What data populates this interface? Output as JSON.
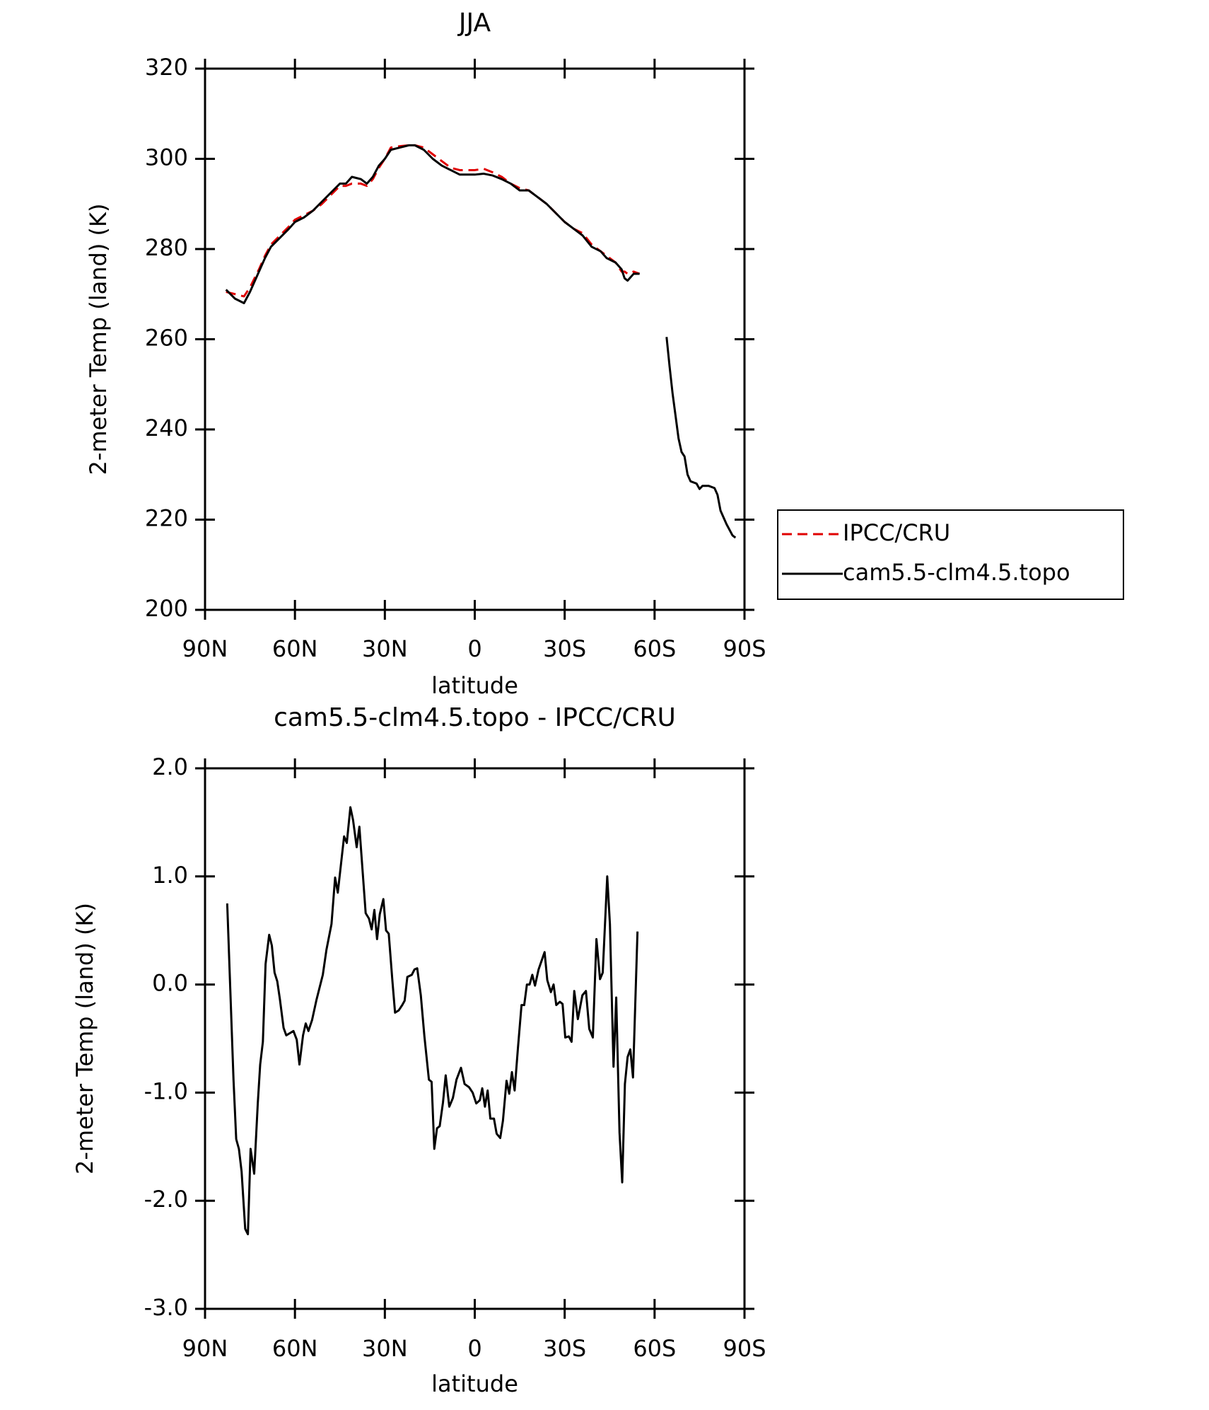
{
  "chart_data": [
    {
      "type": "line",
      "title": "JJA",
      "xlabel": "latitude",
      "ylabel": "2-meter Temp (land) (K)",
      "x": [
        83,
        80,
        77,
        75,
        72,
        70,
        68,
        65,
        62,
        60,
        57,
        54,
        51,
        48,
        45,
        43,
        41,
        38,
        36,
        34,
        32,
        30,
        28,
        25,
        22,
        20,
        17,
        14,
        11,
        8,
        5,
        0,
        -3,
        -6,
        -9,
        -12,
        -15,
        -18,
        -21,
        -24,
        -27,
        -30,
        -33,
        -36,
        -39,
        -42,
        -44,
        -47,
        -49,
        -50,
        -51,
        -53,
        -55,
        -60,
        -64,
        -65,
        -66,
        -67,
        -68,
        -69,
        -70,
        -71,
        -72,
        -74,
        -75,
        -76,
        -78,
        -80,
        -81,
        -82,
        -84,
        -86,
        -87
      ],
      "xlim": [
        90,
        -90
      ],
      "xticks": [
        {
          "value": 90,
          "label": "90N"
        },
        {
          "value": 60,
          "label": "60N"
        },
        {
          "value": 30,
          "label": "30N"
        },
        0,
        {
          "value": -30,
          "label": "30S"
        },
        {
          "value": -60,
          "label": "60S"
        },
        {
          "value": -90,
          "label": "90S"
        }
      ],
      "ylim": [
        200,
        320
      ],
      "yticks": [
        200,
        220,
        240,
        260,
        280,
        300,
        320
      ],
      "legend": "right",
      "series": [
        {
          "name": "IPCC/CRU",
          "color": "#e00000",
          "linestyle": "dashed",
          "values": [
            270.5,
            270,
            269.5,
            271.5,
            275.5,
            278.5,
            281,
            283,
            285,
            286.5,
            287.5,
            288.5,
            290,
            292,
            294,
            294,
            294.5,
            294.5,
            294,
            295.5,
            298,
            300,
            302.5,
            302.8,
            303,
            303,
            302.5,
            301,
            299.5,
            298,
            297.5,
            297.5,
            297.8,
            297,
            296,
            294.5,
            293.5,
            293,
            291.5,
            290,
            288,
            286,
            284.5,
            283.5,
            281,
            279.5,
            278.5,
            277,
            275,
            275,
            274.5,
            275,
            274.5,
            null,
            null,
            null,
            null,
            null,
            null,
            null,
            null,
            null,
            null,
            null,
            null,
            null,
            null,
            null,
            null,
            null,
            null,
            null,
            null
          ]
        },
        {
          "name": "cam5.5-clm4.5.topo",
          "color": "#000000",
          "linestyle": "solid",
          "values": [
            271,
            269,
            268,
            270.5,
            275,
            278,
            280.5,
            282.5,
            284.5,
            286,
            287,
            288.5,
            290.5,
            292.5,
            294.5,
            294.5,
            296,
            295.5,
            294.5,
            296,
            298.5,
            300,
            302,
            302.5,
            303,
            303,
            302,
            300,
            298.5,
            297.5,
            296.5,
            296.5,
            296.7,
            296.3,
            295.5,
            294.5,
            293,
            293,
            291.5,
            290,
            288,
            286,
            284.5,
            283,
            280.5,
            279.5,
            278,
            277,
            275.5,
            273.5,
            273,
            274.5,
            274.5,
            null,
            260.5,
            254,
            248,
            243,
            238,
            235,
            234,
            230,
            228.5,
            228,
            226.8,
            227.5,
            227.5,
            227,
            225.5,
            222,
            219,
            216.5,
            216
          ]
        }
      ]
    },
    {
      "type": "line",
      "title": "cam5.5-clm4.5.topo - IPCC/CRU",
      "xlabel": "latitude",
      "ylabel": "2-meter Temp (land) (K)",
      "x": [
        82.6,
        80.5,
        79.6,
        78.7,
        77.8,
        76.6,
        75.7,
        74.8,
        73.6,
        72.4,
        71.6,
        70.7,
        69.8,
        68.6,
        67.7,
        66.8,
        65.9,
        65,
        63.8,
        62.9,
        61.7,
        60.5,
        59.4,
        58.5,
        57.3,
        56.4,
        55.5,
        54.3,
        52.8,
        50.7,
        49.5,
        47.8,
        46.6,
        45.7,
        43.6,
        42.7,
        41.5,
        40.6,
        39.4,
        38.5,
        36.4,
        35.3,
        34.4,
        33.5,
        32.6,
        31.7,
        30.5,
        29.6,
        28.7,
        27.5,
        26.6,
        25.4,
        24.2,
        23.4,
        22.5,
        21,
        20.1,
        19.2,
        18,
        16.8,
        15.3,
        14.4,
        13.5,
        12.6,
        11.7,
        10.6,
        9.7,
        8.5,
        7.3,
        6.1,
        4.6,
        3.4,
        1.9,
        0.7,
        -0.5,
        -1.7,
        -2.5,
        -3.4,
        -4.3,
        -5.2,
        -6.4,
        -7.3,
        -8.5,
        -9.4,
        -10.6,
        -11.5,
        -12.4,
        -13.3,
        -14.4,
        -15.6,
        -16.5,
        -17.4,
        -18.3,
        -19.2,
        -20.1,
        -21.3,
        -23.3,
        -24.2,
        -25.4,
        -26.3,
        -27.2,
        -28.4,
        -29.3,
        -30.2,
        -31.4,
        -32.3,
        -33.2,
        -34.4,
        -35.9,
        -37.1,
        -38.2,
        -39.4,
        -40.6,
        -41.8,
        -42.7,
        -44.2,
        -45.1,
        -46.3,
        -47.2,
        -48.3,
        -49.2,
        -50.1,
        -51,
        -51.9,
        -52.8,
        -54.3
      ],
      "values": [
        0.75,
        -0.88,
        -1.43,
        -1.52,
        -1.73,
        -2.26,
        -2.31,
        -1.52,
        -1.75,
        -1.1,
        -0.74,
        -0.53,
        0.19,
        0.46,
        0.36,
        0.11,
        0.03,
        -0.14,
        -0.4,
        -0.47,
        -0.45,
        -0.43,
        -0.51,
        -0.74,
        -0.47,
        -0.36,
        -0.43,
        -0.33,
        -0.14,
        0.09,
        0.32,
        0.56,
        0.99,
        0.85,
        1.37,
        1.31,
        1.64,
        1.52,
        1.27,
        1.46,
        0.66,
        0.61,
        0.51,
        0.69,
        0.42,
        0.65,
        0.79,
        0.5,
        0.47,
        0.04,
        -0.26,
        -0.24,
        -0.19,
        -0.15,
        0.07,
        0.09,
        0.14,
        0.15,
        -0.1,
        -0.48,
        -0.88,
        -0.9,
        -1.52,
        -1.33,
        -1.31,
        -1.09,
        -0.84,
        -1.13,
        -1.05,
        -0.88,
        -0.77,
        -0.92,
        -0.95,
        -1,
        -1.1,
        -1.07,
        -0.96,
        -1.13,
        -0.98,
        -1.24,
        -1.24,
        -1.38,
        -1.42,
        -1.26,
        -0.89,
        -1.01,
        -0.81,
        -0.98,
        -0.59,
        -0.19,
        -0.19,
        0,
        0,
        0.09,
        -0.01,
        0.14,
        0.3,
        0.04,
        -0.07,
        0,
        -0.19,
        -0.16,
        -0.18,
        -0.49,
        -0.48,
        -0.53,
        -0.06,
        -0.32,
        -0.1,
        -0.06,
        -0.41,
        -0.49,
        0.42,
        0.05,
        0.11,
        1,
        0.56,
        -0.76,
        -0.12,
        -1.37,
        -1.83,
        -0.92,
        -0.67,
        -0.6,
        -0.86,
        0.49
      ],
      "color": "#000000",
      "xlim": [
        90,
        -90
      ],
      "xticks": [
        {
          "value": 90,
          "label": "90N"
        },
        {
          "value": 60,
          "label": "60N"
        },
        {
          "value": 30,
          "label": "30N"
        },
        0,
        {
          "value": -30,
          "label": "30S"
        },
        {
          "value": -60,
          "label": "60S"
        },
        {
          "value": -90,
          "label": "90S"
        }
      ],
      "ylim": [
        -3,
        2
      ],
      "yticks": [
        {
          "value": -3,
          "label": "-3.0"
        },
        {
          "value": -2,
          "label": "-2.0"
        },
        {
          "value": -1,
          "label": "-1.0"
        },
        {
          "value": 0,
          "label": "0.0"
        },
        {
          "value": 1,
          "label": "1.0"
        },
        {
          "value": 2,
          "label": "2.0"
        }
      ]
    }
  ]
}
